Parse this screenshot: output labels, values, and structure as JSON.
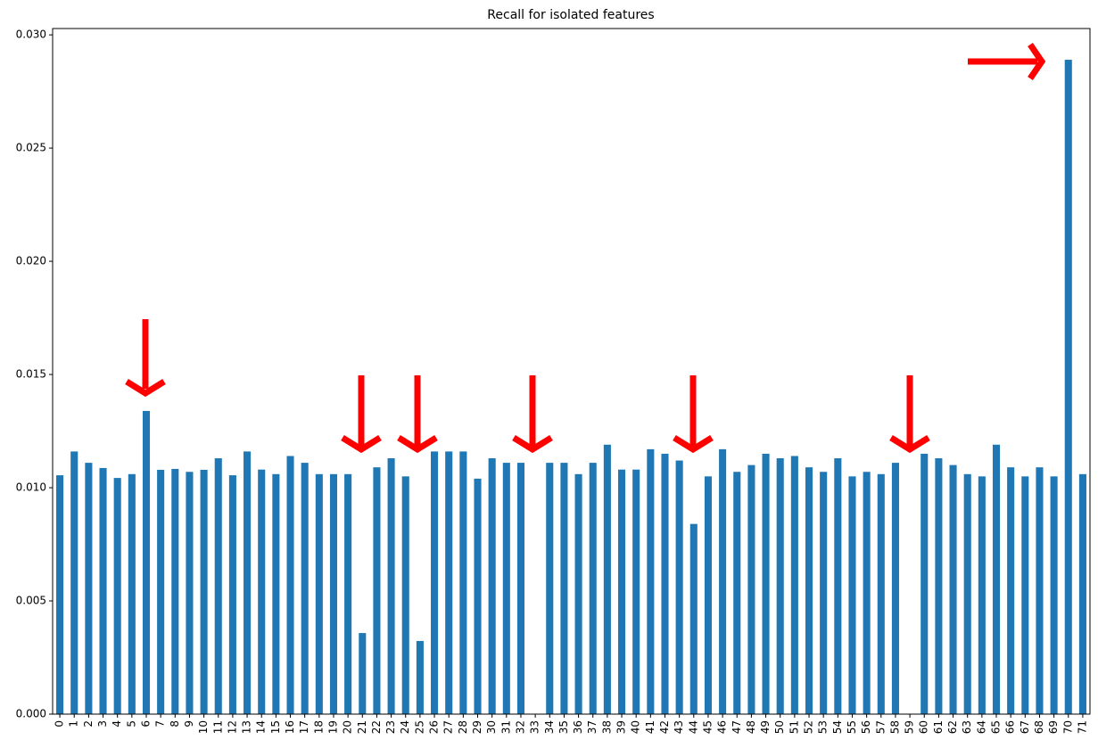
{
  "chart_data": {
    "type": "bar",
    "title": "Recall for isolated features",
    "categories": [
      "0",
      "1",
      "2",
      "3",
      "4",
      "5",
      "6",
      "7",
      "8",
      "9",
      "10",
      "11",
      "12",
      "13",
      "14",
      "15",
      "16",
      "17",
      "18",
      "19",
      "20",
      "21",
      "22",
      "23",
      "24",
      "25",
      "26",
      "27",
      "28",
      "29",
      "30",
      "31",
      "32",
      "33",
      "34",
      "35",
      "36",
      "37",
      "38",
      "39",
      "40",
      "41",
      "42",
      "43",
      "44",
      "45",
      "46",
      "47",
      "48",
      "49",
      "50",
      "51",
      "52",
      "53",
      "54",
      "55",
      "56",
      "57",
      "58",
      "59",
      "60",
      "61",
      "62",
      "63",
      "64",
      "65",
      "66",
      "67",
      "68",
      "69",
      "70",
      "71"
    ],
    "values": [
      0.01055,
      0.0116,
      0.0111,
      0.01087,
      0.01043,
      0.0106,
      0.01339,
      0.01079,
      0.01083,
      0.0107,
      0.01079,
      0.0113,
      0.01055,
      0.0116,
      0.0108,
      0.0106,
      0.0114,
      0.0111,
      0.0106,
      0.0106,
      0.0106,
      0.00358,
      0.0109,
      0.0113,
      0.0105,
      0.00323,
      0.0116,
      0.0116,
      0.0116,
      0.0104,
      0.0113,
      0.0111,
      0.0111,
      0,
      0.0111,
      0.0111,
      0.0106,
      0.0111,
      0.0119,
      0.0108,
      0.0108,
      0.0117,
      0.0115,
      0.0112,
      0.0084,
      0.0105,
      0.0117,
      0.0107,
      0.011,
      0.0115,
      0.0113,
      0.0114,
      0.0109,
      0.0107,
      0.0113,
      0.0105,
      0.0107,
      0.0106,
      0.0111,
      0,
      0.0115,
      0.0113,
      0.011,
      0.0106,
      0.0105,
      0.0119,
      0.0109,
      0.0105,
      0.0109,
      0.0105,
      0.0289,
      0.0106
    ],
    "color": "#1f77b4",
    "ylim": [
      0,
      0.03028
    ],
    "yticks": [
      {
        "value": 0,
        "label": "0.000"
      },
      {
        "value": 0.005,
        "label": "0.005"
      },
      {
        "value": 0.01,
        "label": "0.010"
      },
      {
        "value": 0.015,
        "label": "0.015"
      },
      {
        "value": 0.02,
        "label": "0.020"
      },
      {
        "value": 0.025,
        "label": "0.025"
      },
      {
        "value": 0.03,
        "label": "0.030"
      }
    ],
    "grid": false
  }
}
